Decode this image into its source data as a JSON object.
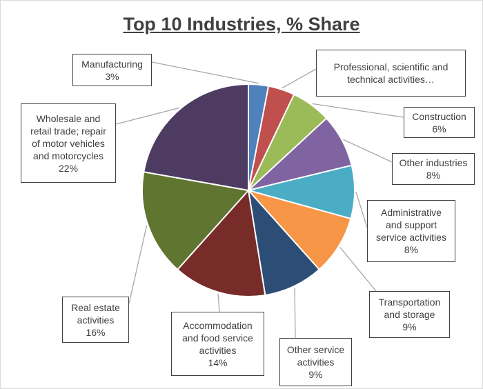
{
  "chart_data": {
    "type": "pie",
    "title": "Top 10 Industries, % Share",
    "categories": [
      "Manufacturing",
      "Professional, scientific and technical activities…",
      "Construction",
      "Other industries",
      "Administrative and support service activities",
      "Transportation and storage",
      "Other service activities",
      "Accommodation and food service activities",
      "Real estate activities",
      "Wholesale and retail trade; repair of motor vehicles and motorcycles"
    ],
    "values": [
      3,
      4,
      6,
      8,
      8,
      9,
      9,
      14,
      16,
      22
    ],
    "value_labels": [
      "3%",
      null,
      "6%",
      "8%",
      "8%",
      "9%",
      "9%",
      "14%",
      "16%",
      "22%"
    ],
    "colors": [
      "#4f81bd",
      "#c0504d",
      "#9bbb59",
      "#8064a2",
      "#4bacc6",
      "#f79646",
      "#2c4d75",
      "#772c2a",
      "#5f7530",
      "#4d3b62"
    ]
  }
}
